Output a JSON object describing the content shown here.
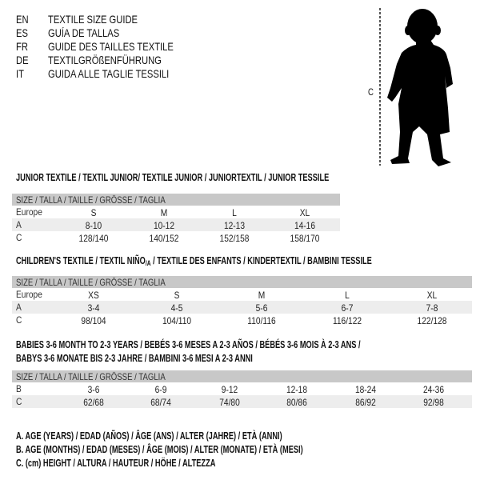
{
  "languages": [
    {
      "code": "EN",
      "title": "TEXTILE SIZE GUIDE"
    },
    {
      "code": "ES",
      "title": "GUÍA DE TALLAS"
    },
    {
      "code": "FR",
      "title": "GUIDE DES TAILLES TEXTILE"
    },
    {
      "code": "DE",
      "title": "TEXTILGRÖßENFÜHRUNG"
    },
    {
      "code": "IT",
      "title": "GUIDA ALLE TAGLIE TESSILI"
    }
  ],
  "figure": {
    "measure_label": "C",
    "icon": "baby-silhouette"
  },
  "size_header": "SIZE / TALLA / TAILLE / GRÖSSE / TAGLIA",
  "junior": {
    "title": "JUNIOR TEXTILE / TEXTIL JUNIOR/ TEXTILE JUNIOR / JUNIORTEXTIL / JUNIOR TESSILE",
    "rows": [
      {
        "label": "Europe",
        "values": [
          "S",
          "M",
          "L",
          "XL"
        ]
      },
      {
        "label": "A",
        "values": [
          "8-10",
          "10-12",
          "12-13",
          "14-16"
        ]
      },
      {
        "label": "C",
        "values": [
          "128/140",
          "140/152",
          "152/158",
          "158/170"
        ]
      }
    ]
  },
  "children": {
    "title_pre": "CHILDREN'S TEXTILE / TEXTIL NIÑO",
    "title_sub": "/A",
    "title_post": " / TEXTILE DES ENFANTS / KINDERTEXTIL / BAMBINI TESSILE",
    "rows": [
      {
        "label": "Europe",
        "values": [
          "XS",
          "S",
          "M",
          "L",
          "XL"
        ]
      },
      {
        "label": "A",
        "values": [
          "3-4",
          "4-5",
          "5-6",
          "6-7",
          "7-8"
        ]
      },
      {
        "label": "C",
        "values": [
          "98/104",
          "104/110",
          "110/116",
          "116/122",
          "122/128"
        ]
      }
    ]
  },
  "babies": {
    "title_line1": "BABIES 3-6 MONTH TO 2-3 YEARS / BEBÉS 3-6 MESES A 2-3 AÑOS / BÉBÉS 3-6 MOIS À 2-3 ANS /",
    "title_line2": "BABYS 3-6 MONATE BIS 2-3 JAHRE / BAMBINI 3-6 MESI A 2-3 ANNI",
    "rows": [
      {
        "label": "B",
        "values": [
          "3-6",
          "6-9",
          "9-12",
          "12-18",
          "18-24",
          "24-36"
        ]
      },
      {
        "label": "C",
        "values": [
          "62/68",
          "68/74",
          "74/80",
          "80/86",
          "86/92",
          "92/98"
        ]
      }
    ]
  },
  "legend": [
    "A. AGE (YEARS) / EDAD (AÑOS) / ÂGE (ANS) / ALTER (JAHRE) / ETÀ (ANNI)",
    "B. AGE (MONTHS) / EDAD (MESES) / ÂGE (MOIS) / ALTER (MONATE) / ETÀ (MESI)",
    "C. (cm) HEIGHT / ALTURA / HAUTEUR / HÖHE / ALTEZZA"
  ]
}
